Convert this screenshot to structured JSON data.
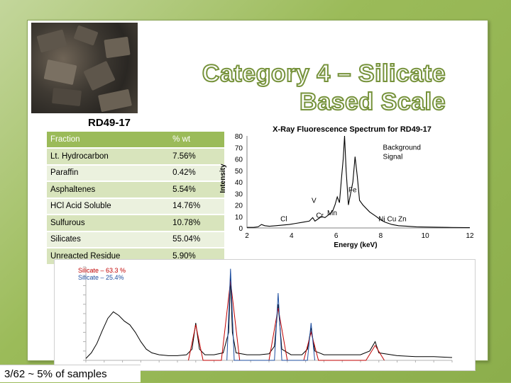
{
  "slide": {
    "title_line1": "Category 4 – Silicate",
    "title_line2": "Based Scale",
    "footer": "3/62 ~ 5% of samples"
  },
  "table": {
    "title": "RD49-17",
    "headers": [
      "Fraction",
      "% wt"
    ],
    "rows": [
      [
        "Lt. Hydrocarbon",
        "7.56%"
      ],
      [
        "Paraffin",
        "0.42%"
      ],
      [
        "Asphaltenes",
        "5.54%"
      ],
      [
        "HCl Acid Soluble",
        "14.76%"
      ],
      [
        "Sulfurous",
        "10.78%"
      ],
      [
        "Silicates",
        "55.04%"
      ],
      [
        "Unreacted Residue",
        "5.90%"
      ]
    ]
  },
  "spectra_legend": {
    "line1": "Silicate  – 63.3 %",
    "line2": "Silicate – 25.4%",
    "colors": [
      "#c00000",
      "#1f4fa0"
    ]
  },
  "chart_data": {
    "type": "line",
    "title": "X-Ray Fluorescence Spectrum for RD49-17",
    "xlabel": "Energy (keV)",
    "ylabel": "Intensity",
    "xlim": [
      2,
      12
    ],
    "ylim": [
      0,
      80
    ],
    "xticks": [
      2,
      4,
      6,
      8,
      10,
      12
    ],
    "yticks": [
      0,
      10,
      20,
      30,
      40,
      50,
      60,
      70,
      80
    ],
    "series": [
      {
        "values": [
          [
            2.0,
            0.5
          ],
          [
            2.3,
            0.5
          ],
          [
            2.5,
            1
          ],
          [
            2.65,
            3
          ],
          [
            2.8,
            2
          ],
          [
            3.0,
            1.5
          ],
          [
            3.3,
            2
          ],
          [
            3.6,
            2.5
          ],
          [
            3.9,
            3
          ],
          [
            4.2,
            4
          ],
          [
            4.5,
            5
          ],
          [
            4.8,
            6
          ],
          [
            4.95,
            9
          ],
          [
            5.05,
            6
          ],
          [
            5.2,
            8
          ],
          [
            5.35,
            10
          ],
          [
            5.5,
            9
          ],
          [
            5.7,
            12
          ],
          [
            5.85,
            15
          ],
          [
            5.95,
            20
          ],
          [
            6.05,
            27
          ],
          [
            6.15,
            22
          ],
          [
            6.25,
            45
          ],
          [
            6.32,
            60
          ],
          [
            6.38,
            80
          ],
          [
            6.45,
            50
          ],
          [
            6.55,
            20
          ],
          [
            6.65,
            30
          ],
          [
            6.75,
            40
          ],
          [
            6.85,
            62
          ],
          [
            6.95,
            45
          ],
          [
            7.05,
            24
          ],
          [
            7.2,
            20
          ],
          [
            7.5,
            14
          ],
          [
            7.8,
            10
          ],
          [
            8.0,
            7
          ],
          [
            8.2,
            5
          ],
          [
            8.5,
            3
          ],
          [
            8.8,
            2
          ],
          [
            9.2,
            1.5
          ],
          [
            9.6,
            1
          ],
          [
            10.0,
            0.8
          ],
          [
            11.0,
            0.5
          ],
          [
            12.0,
            0.3
          ]
        ]
      }
    ],
    "annotations": [
      {
        "text": "Background",
        "x": 8.1,
        "y": 68
      },
      {
        "text": "Signal",
        "x": 8.1,
        "y": 60
      },
      {
        "text": "Fe",
        "x": 6.55,
        "y": 31
      },
      {
        "text": "V",
        "x": 4.9,
        "y": 22
      },
      {
        "text": "Cl",
        "x": 3.5,
        "y": 6
      },
      {
        "text": "Cr",
        "x": 5.1,
        "y": 9
      },
      {
        "text": "Mn",
        "x": 5.6,
        "y": 11
      },
      {
        "text": "Ni Cu Zn",
        "x": 7.9,
        "y": 6
      }
    ],
    "grid": false
  },
  "spectra_chart": {
    "type": "line",
    "series": [
      {
        "color": "#000000",
        "values": [
          [
            0,
            2
          ],
          [
            3,
            8
          ],
          [
            6,
            18
          ],
          [
            9,
            32
          ],
          [
            12,
            45
          ],
          [
            15,
            52
          ],
          [
            18,
            48
          ],
          [
            21,
            42
          ],
          [
            24,
            38
          ],
          [
            27,
            30
          ],
          [
            30,
            20
          ],
          [
            33,
            12
          ],
          [
            36,
            8
          ],
          [
            40,
            6
          ],
          [
            45,
            5
          ],
          [
            50,
            5
          ],
          [
            55,
            6
          ],
          [
            58,
            12
          ],
          [
            60,
            40
          ],
          [
            62,
            12
          ],
          [
            65,
            6
          ],
          [
            70,
            6
          ],
          [
            75,
            8
          ],
          [
            78,
            30
          ],
          [
            79,
            90
          ],
          [
            80,
            30
          ],
          [
            82,
            8
          ],
          [
            88,
            6
          ],
          [
            95,
            6
          ],
          [
            100,
            7
          ],
          [
            103,
            15
          ],
          [
            105,
            60
          ],
          [
            107,
            12
          ],
          [
            112,
            6
          ],
          [
            118,
            6
          ],
          [
            121,
            12
          ],
          [
            123,
            35
          ],
          [
            125,
            10
          ],
          [
            130,
            6
          ],
          [
            140,
            6
          ],
          [
            150,
            6
          ],
          [
            155,
            10
          ],
          [
            158,
            20
          ],
          [
            160,
            8
          ],
          [
            170,
            5
          ],
          [
            180,
            4
          ],
          [
            190,
            4
          ],
          [
            200,
            3
          ]
        ]
      },
      {
        "color": "#c00000",
        "values": [
          [
            56,
            0
          ],
          [
            60,
            38
          ],
          [
            64,
            0
          ],
          [
            74,
            0
          ],
          [
            79,
            85
          ],
          [
            84,
            0
          ],
          [
            100,
            0
          ],
          [
            105,
            56
          ],
          [
            110,
            0
          ],
          [
            119,
            0
          ],
          [
            123,
            30
          ],
          [
            127,
            0
          ],
          [
            153,
            0
          ],
          [
            158,
            16
          ],
          [
            163,
            0
          ]
        ]
      },
      {
        "color": "#1f4fa0",
        "values": [
          [
            77,
            0
          ],
          [
            79,
            98
          ],
          [
            81,
            0
          ],
          [
            103,
            0
          ],
          [
            105,
            72
          ],
          [
            107,
            0
          ],
          [
            121,
            0
          ],
          [
            123,
            40
          ],
          [
            125,
            0
          ]
        ]
      }
    ],
    "xlim": [
      0,
      200
    ],
    "ylim": [
      0,
      100
    ]
  }
}
